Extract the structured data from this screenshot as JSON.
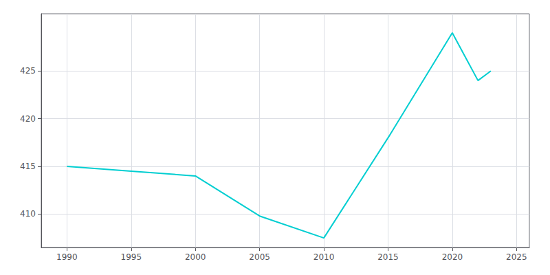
{
  "chart_data": {
    "type": "line",
    "x": [
      1990,
      1995,
      2000,
      2005,
      2010,
      2015,
      2020,
      2021,
      2022,
      2023
    ],
    "values": [
      415,
      414.5,
      414,
      409.8,
      407.5,
      418,
      429,
      426.5,
      424,
      425
    ],
    "color": "#00CED1",
    "xlim": [
      1988,
      2026
    ],
    "ylim": [
      406.5,
      431
    ],
    "xticks": [
      1990,
      1995,
      2000,
      2005,
      2010,
      2015,
      2020,
      2025
    ],
    "yticks": [
      410,
      415,
      420,
      425
    ],
    "grid": true
  }
}
